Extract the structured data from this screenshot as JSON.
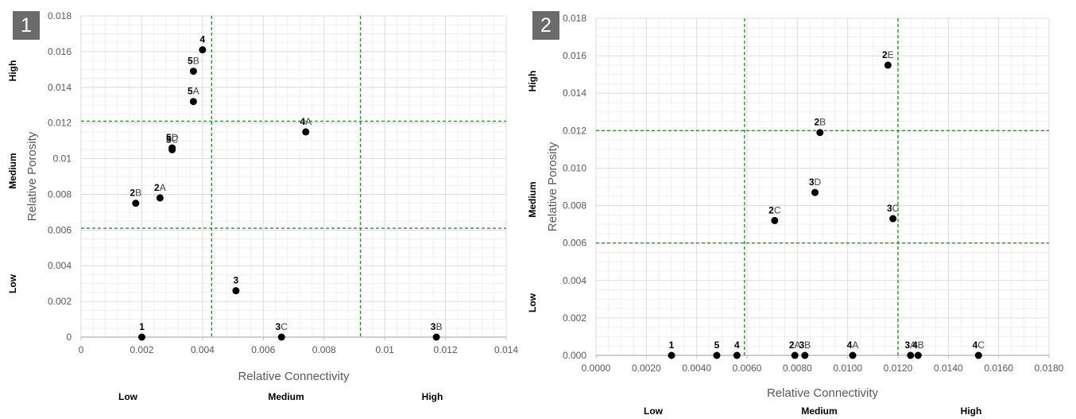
{
  "chart_data": [
    {
      "panel": "1",
      "type": "scatter",
      "xlabel": "Relative Connectivity",
      "ylabel": "Relative Porosity",
      "xlim": [
        0,
        0.014
      ],
      "ylim": [
        0,
        0.018
      ],
      "xticks": [
        "0",
        "0.002",
        "0.004",
        "0.006",
        "0.008",
        "0.01",
        "0.012",
        "0.014"
      ],
      "yticks": [
        "0",
        "0.002",
        "0.004",
        "0.006",
        "0.008",
        "0.01",
        "0.012",
        "0.014",
        "0.016",
        "0.018"
      ],
      "x_categories": [
        "Low",
        "Medium",
        "High"
      ],
      "y_categories": [
        "Low",
        "Medium",
        "High"
      ],
      "threshold_x": [
        0.0043,
        0.0092
      ],
      "threshold_y": [
        0.0061,
        0.0121
      ],
      "points": [
        {
          "x": 0.004,
          "y": 0.0161,
          "num": "4",
          "suffix": ""
        },
        {
          "x": 0.0037,
          "y": 0.0149,
          "num": "5",
          "suffix": "B"
        },
        {
          "x": 0.0037,
          "y": 0.0132,
          "num": "5",
          "suffix": "A"
        },
        {
          "x": 0.0074,
          "y": 0.0115,
          "num": "4",
          "suffix": "A"
        },
        {
          "x": 0.003,
          "y": 0.0106,
          "num": "5",
          "suffix": "D"
        },
        {
          "x": 0.003,
          "y": 0.0105,
          "num": "5",
          "suffix": "C"
        },
        {
          "x": 0.0026,
          "y": 0.0078,
          "num": "2",
          "suffix": "A"
        },
        {
          "x": 0.0018,
          "y": 0.0075,
          "num": "2",
          "suffix": "B"
        },
        {
          "x": 0.0051,
          "y": 0.0026,
          "num": "3",
          "suffix": ""
        },
        {
          "x": 0.002,
          "y": 0.0,
          "num": "1",
          "suffix": ""
        },
        {
          "x": 0.0066,
          "y": 0.0,
          "num": "3",
          "suffix": "C"
        },
        {
          "x": 0.0117,
          "y": 0.0,
          "num": "3",
          "suffix": "B"
        }
      ]
    },
    {
      "panel": "2",
      "type": "scatter",
      "xlabel": "Relative Connectivity",
      "ylabel": "Relative Porosity",
      "xlim": [
        0,
        0.018
      ],
      "ylim": [
        0,
        0.018
      ],
      "xticks": [
        "0.0000",
        "0.0020",
        "0.0040",
        "0.0060",
        "0.0080",
        "0.0100",
        "0.0120",
        "0.0140",
        "0.0160",
        "0.0180"
      ],
      "yticks": [
        "0.000",
        "0.002",
        "0.004",
        "0.006",
        "0.008",
        "0.010",
        "0.012",
        "0.014",
        "0.016",
        "0.018"
      ],
      "x_categories": [
        "Low",
        "Medium",
        "High"
      ],
      "y_categories": [
        "Low",
        "Medium",
        "High"
      ],
      "threshold_x": [
        0.0059,
        0.012
      ],
      "threshold_y": [
        0.012,
        0.006
      ],
      "points": [
        {
          "x": 0.0116,
          "y": 0.0155,
          "num": "2",
          "suffix": "E"
        },
        {
          "x": 0.0089,
          "y": 0.0119,
          "num": "2",
          "suffix": "B"
        },
        {
          "x": 0.0087,
          "y": 0.0087,
          "num": "3",
          "suffix": "D"
        },
        {
          "x": 0.0071,
          "y": 0.0072,
          "num": "2",
          "suffix": "C"
        },
        {
          "x": 0.0118,
          "y": 0.0073,
          "num": "3",
          "suffix": "C"
        },
        {
          "x": 0.003,
          "y": 0.0,
          "num": "1",
          "suffix": ""
        },
        {
          "x": 0.0048,
          "y": 0.0,
          "num": "5",
          "suffix": ""
        },
        {
          "x": 0.0056,
          "y": 0.0,
          "num": "4",
          "suffix": ""
        },
        {
          "x": 0.0079,
          "y": 0.0,
          "num": "2",
          "suffix": "A"
        },
        {
          "x": 0.0083,
          "y": 0.0,
          "num": "3",
          "suffix": "B"
        },
        {
          "x": 0.0102,
          "y": 0.0,
          "num": "4",
          "suffix": "A"
        },
        {
          "x": 0.0125,
          "y": 0.0,
          "num": "3",
          "suffix": "A"
        },
        {
          "x": 0.0128,
          "y": 0.0,
          "num": "4",
          "suffix": "B"
        },
        {
          "x": 0.0152,
          "y": 0.0,
          "num": "4",
          "suffix": "C"
        }
      ]
    }
  ],
  "grid": true,
  "colors": {
    "threshold": "#2f8f2f",
    "point": "#000000",
    "grid": "#dcdcdc",
    "badge": "#6b6b6b"
  }
}
